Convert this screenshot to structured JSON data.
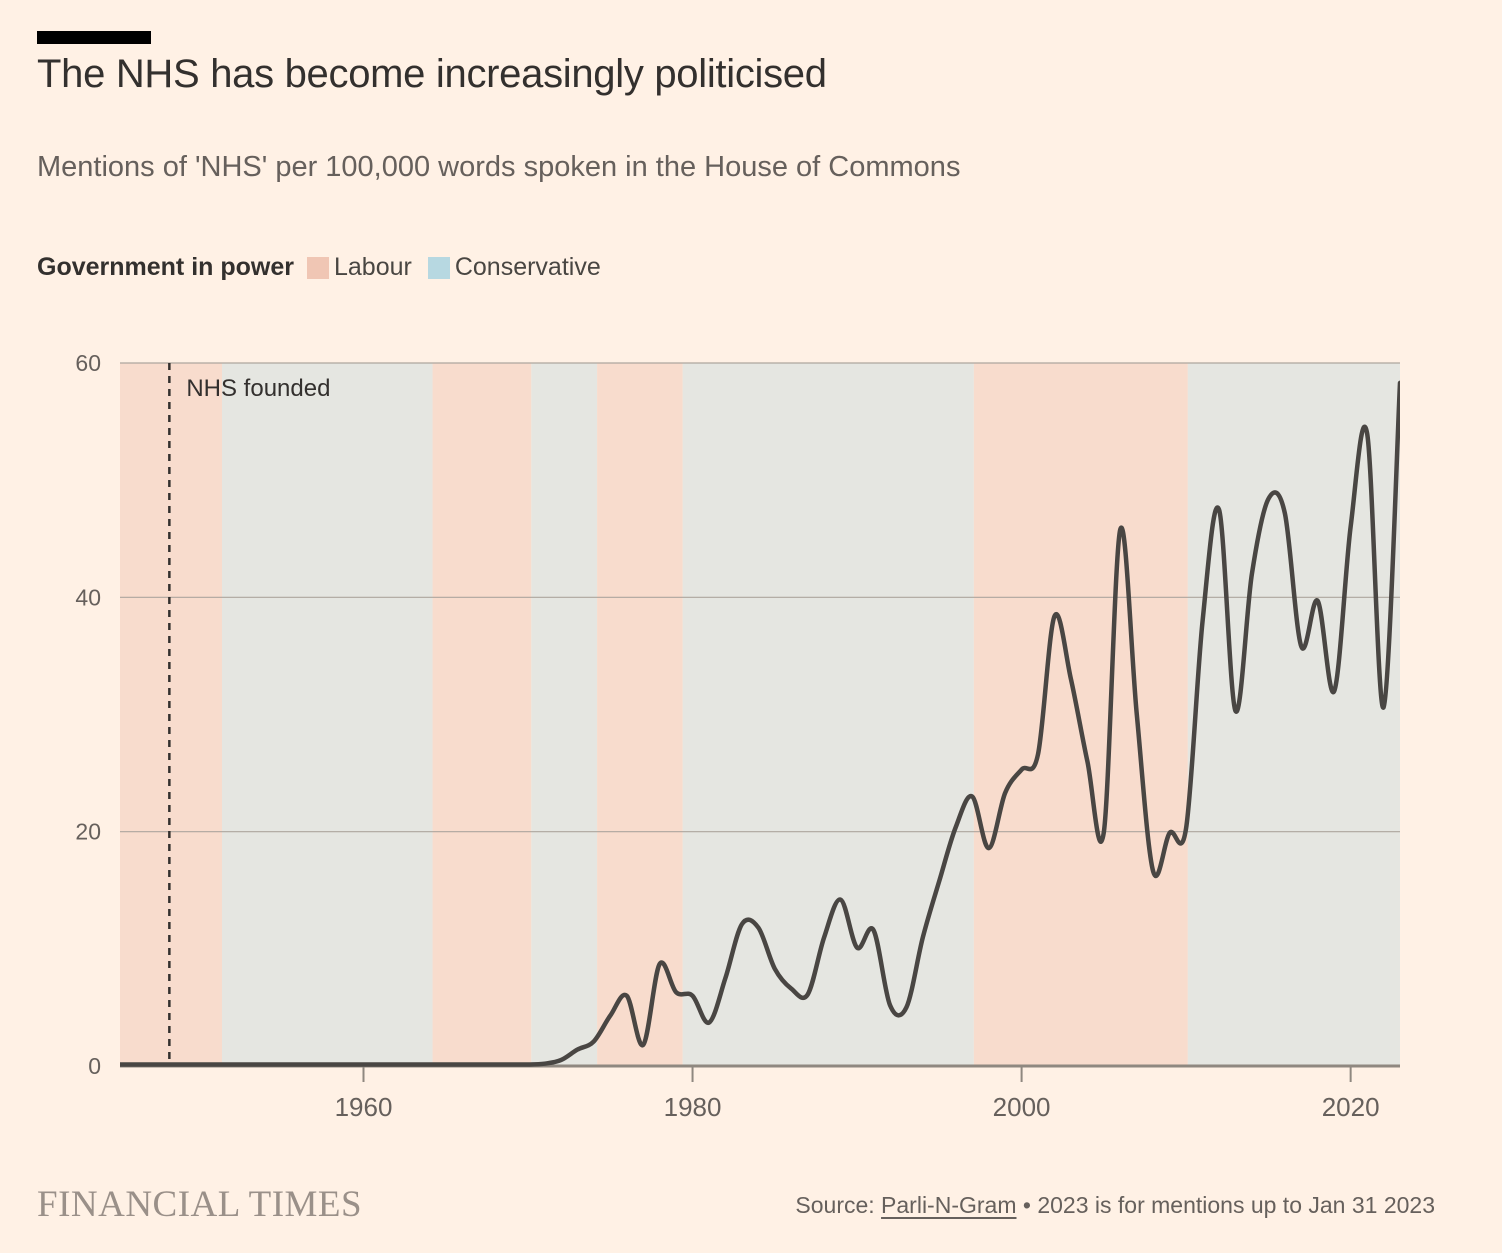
{
  "header": {
    "title": "The NHS has become increasingly politicised",
    "subtitle": "Mentions of 'NHS' per 100,000 words spoken in the House of Commons"
  },
  "legend": {
    "label": "Government in power",
    "items": [
      {
        "label": "Labour",
        "color": "#F0C6B4"
      },
      {
        "label": "Conservative",
        "color": "#B7D8E1"
      }
    ]
  },
  "chart_data": {
    "type": "line",
    "title": "The NHS has become increasingly politicised",
    "subtitle": "Mentions of 'NHS' per 100,000 words spoken in the House of Commons",
    "xlabel": "",
    "ylabel": "",
    "xlim": [
      1945.2,
      2023.0
    ],
    "ylim": [
      0,
      60
    ],
    "xticks": [
      1960,
      1980,
      2000,
      2020
    ],
    "yticks": [
      0,
      20,
      40,
      60
    ],
    "grid": true,
    "legend_position": "top",
    "annotation": {
      "label": "NHS founded",
      "year": 1948.2
    },
    "bands": [
      {
        "party": "Labour",
        "from": 1945.2,
        "to": 1951.4
      },
      {
        "party": "Conservative",
        "from": 1951.4,
        "to": 1964.2
      },
      {
        "party": "Labour",
        "from": 1964.2,
        "to": 1970.2
      },
      {
        "party": "Conservative",
        "from": 1970.2,
        "to": 1974.2
      },
      {
        "party": "Labour",
        "from": 1974.2,
        "to": 1979.4
      },
      {
        "party": "Conservative",
        "from": 1979.4,
        "to": 1997.1
      },
      {
        "party": "Labour",
        "from": 1997.1,
        "to": 2010.1
      },
      {
        "party": "Conservative",
        "from": 2010.1,
        "to": 2023.0
      }
    ],
    "band_colors": {
      "Labour": "#F8DCCD",
      "Conservative": "#E5E6E1"
    },
    "colors": {
      "line": "#494643",
      "gridline": "#ADA69E",
      "baseline": "#8F8880",
      "tick": "#8F8880",
      "axis_text": "#66605C",
      "annotation_text": "#33302E",
      "annotation_line": "#33302E"
    },
    "series": [
      {
        "name": "Mentions of 'NHS' per 100,000 words",
        "x": [
          1945,
          1946,
          1947,
          1948,
          1949,
          1950,
          1951,
          1952,
          1953,
          1954,
          1955,
          1956,
          1957,
          1958,
          1959,
          1960,
          1961,
          1962,
          1963,
          1964,
          1965,
          1966,
          1967,
          1968,
          1969,
          1970,
          1971,
          1972,
          1973,
          1974,
          1975,
          1976,
          1977,
          1978,
          1979,
          1980,
          1981,
          1982,
          1983,
          1984,
          1985,
          1986,
          1987,
          1988,
          1989,
          1990,
          1991,
          1992,
          1993,
          1994,
          1995,
          1996,
          1997,
          1998,
          1999,
          2000,
          2001,
          2002,
          2003,
          2004,
          2005,
          2006,
          2007,
          2008,
          2009,
          2010,
          2011,
          2012,
          2013,
          2014,
          2015,
          2016,
          2017,
          2018,
          2019,
          2020,
          2021,
          2022,
          2023
        ],
        "y": [
          0.1,
          0.1,
          0.1,
          0.1,
          0.1,
          0.1,
          0.1,
          0.1,
          0.1,
          0.1,
          0.1,
          0.1,
          0.1,
          0.1,
          0.1,
          0.1,
          0.1,
          0.1,
          0.1,
          0.1,
          0.1,
          0.1,
          0.1,
          0.1,
          0.1,
          0.1,
          0.2,
          0.5,
          1.4,
          2.1,
          4.3,
          6.0,
          1.8,
          8.7,
          6.3,
          6.0,
          3.7,
          7.5,
          12.1,
          11.8,
          8.3,
          6.6,
          6.1,
          11.0,
          14.2,
          10.1,
          11.6,
          5.2,
          5.0,
          11.0,
          15.8,
          20.4,
          23.0,
          18.6,
          23.3,
          25.3,
          26.6,
          38.4,
          33.0,
          26.0,
          20.0,
          45.8,
          30.0,
          16.6,
          19.9,
          20.3,
          38.0,
          47.5,
          30.3,
          42.0,
          48.4,
          47.2,
          35.8,
          39.7,
          32.0,
          46.0,
          54.0,
          30.6,
          58.3
        ]
      }
    ]
  },
  "footer": {
    "brand": "FINANCIAL TIMES",
    "source_prefix": "Source: ",
    "source_link": "Parli-N-Gram",
    "source_suffix": " • 2023 is for mentions up to Jan 31 2023"
  }
}
